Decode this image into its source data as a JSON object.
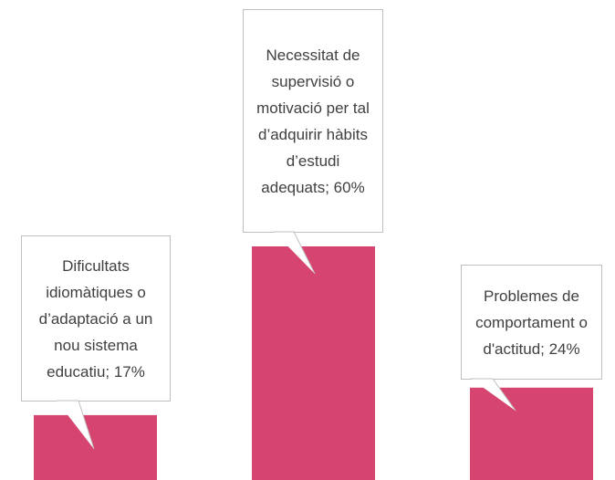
{
  "chart_data": {
    "type": "bar",
    "values": [
      17,
      60,
      24
    ],
    "value_labels": [
      "Dificultats idiomàtiques o d’adaptació a un nou sistema educatiu; 17%",
      "Necessitat de supervisió o motivació per tal d’adquirir hàbits d’estudi adequats; 60%",
      "Problemes de comportament o d'actitud; 24%"
    ],
    "color": "#d6456f"
  }
}
